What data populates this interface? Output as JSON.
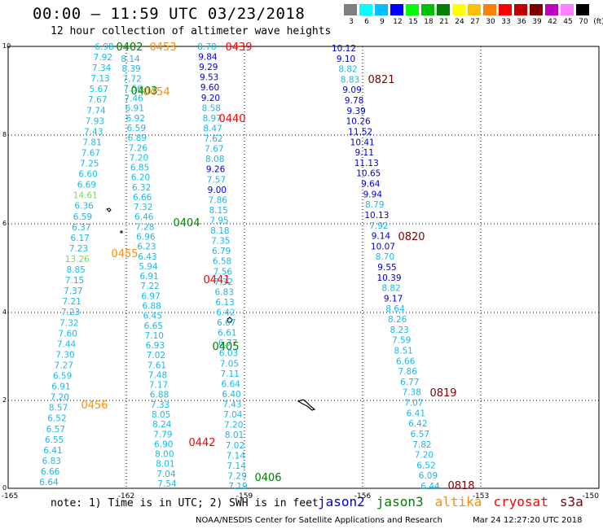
{
  "title": "00:00 – 11:59 UTC 03/23/2018",
  "subtitle": "12 hour collection of altimeter wave heights",
  "scale": {
    "unit": "(ft)",
    "labels": [
      "3",
      "6",
      "9",
      "12",
      "15",
      "18",
      "21",
      "24",
      "27",
      "30",
      "33",
      "36",
      "39",
      "42",
      "45",
      "70"
    ],
    "colors": [
      "#7f7f7f",
      "#00ffff",
      "#00bfff",
      "#0000ff",
      "#00ff00",
      "#00c000",
      "#008000",
      "#ffff00",
      "#ffc000",
      "#ff8000",
      "#ff0000",
      "#c00000",
      "#800000",
      "#c000c0",
      "#ff80ff",
      "#000000"
    ]
  },
  "axes": {
    "x_ticks": [
      "-165",
      "-162",
      "-159",
      "-156",
      "-153",
      "-150"
    ],
    "y_ticks": [
      "10",
      "8",
      "6",
      "4",
      "2",
      "0"
    ]
  },
  "passes": [
    {
      "label": "0402",
      "color": "#008000"
    },
    {
      "label": "0453",
      "color": "#ff8c00"
    },
    {
      "label": "0439",
      "color": "#ff0000"
    },
    {
      "label": "0403",
      "color": "#008000"
    },
    {
      "label": "0454",
      "color": "#ff8c00"
    },
    {
      "label": "0440",
      "color": "#ff0000"
    },
    {
      "label": "0821",
      "color": "#800000"
    },
    {
      "label": "0404",
      "color": "#008000"
    },
    {
      "label": "0820",
      "color": "#800000"
    },
    {
      "label": "0455",
      "color": "#ff8c00"
    },
    {
      "label": "0441",
      "color": "#ff0000"
    },
    {
      "label": "0405",
      "color": "#008000"
    },
    {
      "label": "0819",
      "color": "#800000"
    },
    {
      "label": "0456",
      "color": "#ff8c00"
    },
    {
      "label": "0442",
      "color": "#ff0000"
    },
    {
      "label": "0406",
      "color": "#008000"
    },
    {
      "label": "0818",
      "color": "#800000"
    }
  ],
  "tracks": [
    {
      "name": "track-a",
      "values": [
        "6.98",
        "7.92",
        "7.34",
        "7.13",
        "5.67",
        "7.67",
        "7.74",
        "7.93",
        "7.43",
        "7.81",
        "7.67",
        "7.25",
        "6.60",
        "6.69",
        "14.61",
        "6.36",
        "6.59",
        "6.37",
        "6.17",
        "7.23",
        "13.26",
        "8.85",
        "7.15",
        "7.37",
        "7.21",
        "7.23",
        "7.32",
        "7.60",
        "7.44",
        "7.30",
        "7.27",
        "6.59",
        "6.91",
        "7.20",
        "8.57",
        "6.52",
        "6.57",
        "6.55",
        "6.41",
        "6.83",
        "6.66",
        "6.64"
      ]
    },
    {
      "name": "track-b",
      "values": [
        "8.14",
        "8.39",
        "7.72",
        "7.56",
        "7.46",
        "6.91",
        "6.92",
        "6.59",
        "6.89",
        "7.26",
        "7.20",
        "6.85",
        "6.20",
        "6.32",
        "6.66",
        "7.32",
        "6.46",
        "7.28",
        "6.96",
        "6.23",
        "6.43",
        "5.94",
        "6.91",
        "7.22",
        "6.97",
        "6.88",
        "6.45",
        "6.65",
        "7.10",
        "6.93",
        "7.02",
        "7.61",
        "7.48",
        "7.17",
        "6.88",
        "7.33",
        "8.05",
        "8.24",
        "7.79",
        "6.90",
        "8.00",
        "8.01",
        "7.04",
        "7.54"
      ]
    },
    {
      "name": "track-c",
      "values": [
        "8.70",
        "9.84",
        "9.29",
        "9.53",
        "9.60",
        "9.20",
        "8.58",
        "8.97",
        "8.47",
        "7.62",
        "7.67",
        "8.08",
        "9.26",
        "7.57",
        "9.00",
        "7.86",
        "8.15",
        "7.95",
        "8.18",
        "7.35",
        "6.79",
        "6.58",
        "7.56",
        "7.32",
        "6.83",
        "6.13",
        "6.42",
        "6.67",
        "6.61",
        "6.77",
        "6.03",
        "7.05",
        "7.11",
        "6.64",
        "6.40",
        "7.43",
        "7.04",
        "7.20",
        "8.01",
        "7.02",
        "7.14",
        "7.14",
        "7.29",
        "7.19"
      ]
    },
    {
      "name": "track-d",
      "values": [
        "10.12",
        "9.10",
        "8.82",
        "8.83",
        "9.09",
        "9.78",
        "9.39",
        "10.26",
        "11.52",
        "10.41",
        "9.11",
        "11.13",
        "10.65",
        "9.64",
        "9.94",
        "8.79",
        "10.13",
        "7.92",
        "9.14",
        "10.07",
        "8.70",
        "9.55",
        "10.39",
        "8.82",
        "9.17",
        "8.64",
        "8.26",
        "8.23",
        "7.59",
        "8.51",
        "6.66",
        "7.86",
        "6.77",
        "7.38",
        "7.07",
        "6.41",
        "6.42",
        "6.57",
        "7.82",
        "7.20",
        "6.52",
        "6.09",
        "6.44"
      ]
    }
  ],
  "note": "note: 1) Time is in UTC; 2) SWH is in feet",
  "legend": [
    {
      "name": "jason2",
      "color": "#0000cc"
    },
    {
      "name": "jason3",
      "color": "#008000"
    },
    {
      "name": "altika",
      "color": "#ff8c00"
    },
    {
      "name": "cryosat",
      "color": "#ff0000"
    },
    {
      "name": "s3a",
      "color": "#800000"
    }
  ],
  "credit": "NOAA/NESDIS Center for Satellite Applications and Research",
  "timestamp": "Mar 24 12:27:20 UTC 2018"
}
